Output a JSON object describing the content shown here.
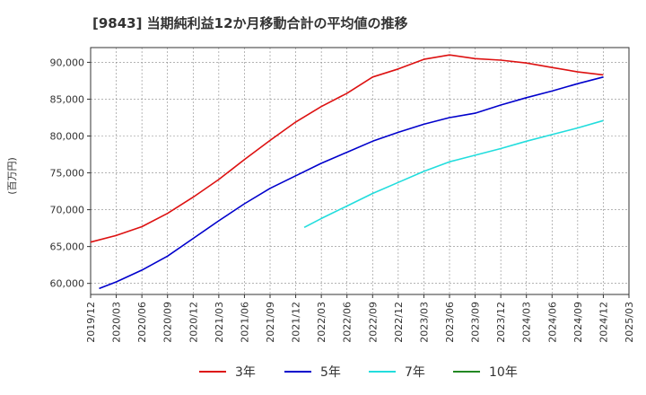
{
  "chart_data": {
    "type": "line",
    "title": "[9843]  当期純利益12か月移動合計の平均値の推移",
    "ylabel": "(百万円)",
    "xlabel": "",
    "ylim": [
      58500,
      92000
    ],
    "y_ticks": [
      60000,
      65000,
      70000,
      75000,
      80000,
      85000,
      90000
    ],
    "y_tick_labels": [
      "60,000",
      "65,000",
      "70,000",
      "75,000",
      "80,000",
      "85,000",
      "90,000"
    ],
    "x_tick_labels": [
      "2019/12",
      "2020/03",
      "2020/06",
      "2020/09",
      "2020/12",
      "2021/03",
      "2021/06",
      "2021/09",
      "2021/12",
      "2022/03",
      "2022/06",
      "2022/09",
      "2022/12",
      "2023/03",
      "2023/06",
      "2023/09",
      "2023/12",
      "2024/03",
      "2024/06",
      "2024/09",
      "2024/12",
      "2025/03"
    ],
    "grid": true,
    "legend_position": "bottom",
    "series": [
      {
        "name": "3年",
        "color": "#dd1111",
        "points": [
          [
            "2019/12",
            65600
          ],
          [
            "2020/03",
            66500
          ],
          [
            "2020/06",
            67700
          ],
          [
            "2020/09",
            69500
          ],
          [
            "2020/12",
            71700
          ],
          [
            "2021/03",
            74100
          ],
          [
            "2021/06",
            76800
          ],
          [
            "2021/09",
            79400
          ],
          [
            "2021/12",
            81900
          ],
          [
            "2022/03",
            84000
          ],
          [
            "2022/06",
            85800
          ],
          [
            "2022/09",
            88000
          ],
          [
            "2022/12",
            89100
          ],
          [
            "2023/03",
            90400
          ],
          [
            "2023/06",
            91000
          ],
          [
            "2023/09",
            90500
          ],
          [
            "2023/12",
            90300
          ],
          [
            "2024/03",
            89900
          ],
          [
            "2024/06",
            89300
          ],
          [
            "2024/09",
            88700
          ],
          [
            "2024/12",
            88300
          ]
        ]
      },
      {
        "name": "5年",
        "color": "#0000cc",
        "points": [
          [
            "2020/01",
            59300
          ],
          [
            "2020/03",
            60200
          ],
          [
            "2020/06",
            61800
          ],
          [
            "2020/09",
            63700
          ],
          [
            "2020/12",
            66100
          ],
          [
            "2021/03",
            68500
          ],
          [
            "2021/06",
            70800
          ],
          [
            "2021/09",
            72900
          ],
          [
            "2021/12",
            74600
          ],
          [
            "2022/03",
            76300
          ],
          [
            "2022/06",
            77800
          ],
          [
            "2022/09",
            79300
          ],
          [
            "2022/12",
            80500
          ],
          [
            "2023/03",
            81600
          ],
          [
            "2023/06",
            82500
          ],
          [
            "2023/09",
            83100
          ],
          [
            "2023/12",
            84200
          ],
          [
            "2024/03",
            85200
          ],
          [
            "2024/06",
            86100
          ],
          [
            "2024/09",
            87100
          ],
          [
            "2024/12",
            88000
          ]
        ]
      },
      {
        "name": "7年",
        "color": "#22dddd",
        "points": [
          [
            "2022/01",
            67600
          ],
          [
            "2022/03",
            68800
          ],
          [
            "2022/06",
            70500
          ],
          [
            "2022/09",
            72200
          ],
          [
            "2022/12",
            73700
          ],
          [
            "2023/03",
            75200
          ],
          [
            "2023/06",
            76500
          ],
          [
            "2023/09",
            77400
          ],
          [
            "2023/12",
            78300
          ],
          [
            "2024/03",
            79300
          ],
          [
            "2024/06",
            80200
          ],
          [
            "2024/09",
            81100
          ],
          [
            "2024/12",
            82100
          ]
        ]
      },
      {
        "name": "10年",
        "color": "#228822",
        "points": []
      }
    ]
  }
}
